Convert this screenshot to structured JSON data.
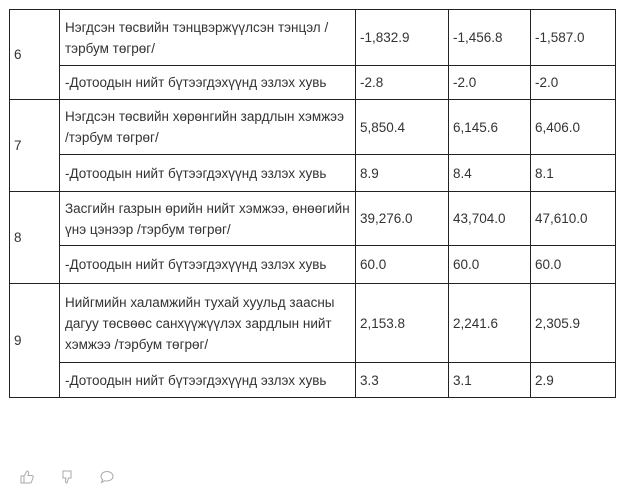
{
  "rows": [
    {
      "num": "6",
      "label": "Нэгдсэн төсвийн тэнцвэржүүлсэн тэнцэл /тэрбум төгрөг/",
      "values": [
        "-1,832.9",
        "-1,456.8",
        "-1,587.0"
      ],
      "sub_label": "-Дотоодын нийт бүтээгдэхүүнд эзлэх хувь",
      "sub_values": [
        "-2.8",
        "-2.0",
        "-2.0"
      ]
    },
    {
      "num": "7",
      "label": "Нэгдсэн төсвийн хөрөнгийн зардлын хэмжээ /тэрбум төгрөг/",
      "values": [
        "5,850.4",
        "6,145.6",
        "6,406.0"
      ],
      "sub_label": "-Дотоодын нийт бүтээгдэхүүнд эзлэх хувь",
      "sub_values": [
        "8.9",
        "8.4",
        "8.1"
      ]
    },
    {
      "num": "8",
      "label": "Засгийн газрын өрийн нийт хэмжээ, өнөөгийн үнэ цэнээр /тэрбум төгрөг/",
      "values": [
        "39,276.0",
        "43,704.0",
        "47,610.0"
      ],
      "sub_label": "-Дотоодын нийт бүтээгдэхүүнд эзлэх хувь",
      "sub_values": [
        "60.0",
        "60.0",
        "60.0"
      ]
    },
    {
      "num": "9",
      "label": "Нийгмийн халамжийн тухай хуульд заасны дагуу төсвөөс санхүүжүүлэх зардлын нийт хэмжээ /тэрбум төгрөг/",
      "values": [
        "2,153.8",
        "2,241.6",
        "2,305.9"
      ],
      "sub_label": "-Дотоодын нийт бүтээгдэхүүнд эзлэх хувь",
      "sub_values": [
        "3.3",
        "3.1",
        "2.9"
      ]
    }
  ],
  "actions": {
    "icons": [
      "thumbs-up-icon",
      "thumbs-down-icon",
      "comment-icon"
    ]
  }
}
